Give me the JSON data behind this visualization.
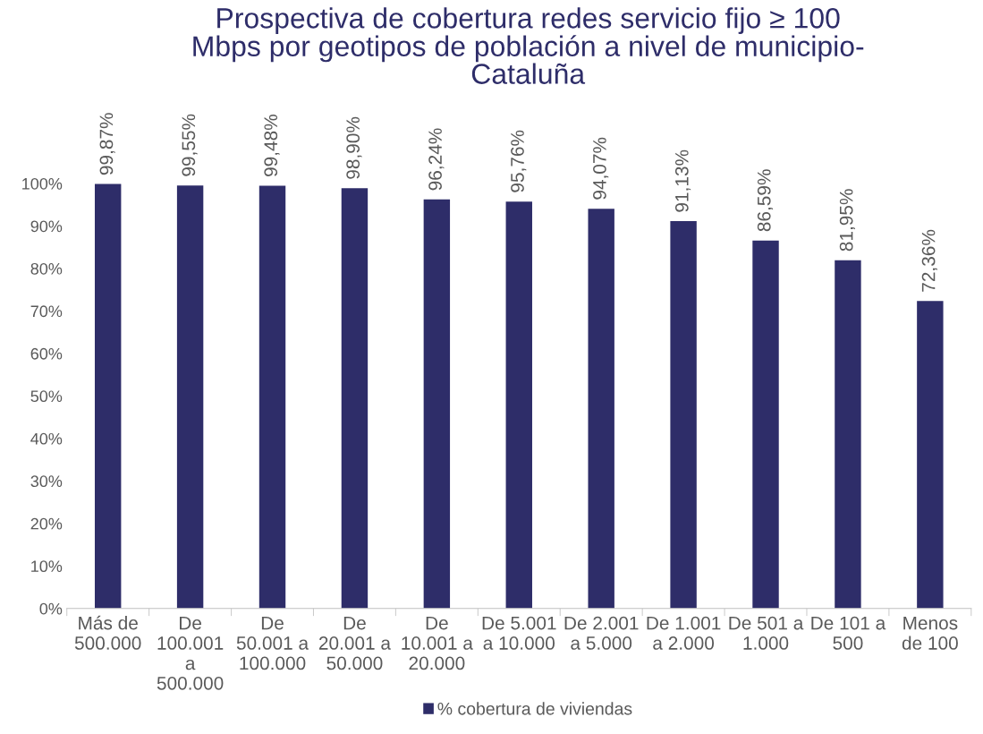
{
  "chart_data": {
    "type": "bar",
    "title": "Prospectiva de cobertura redes servicio fijo ≥ 100\nMbps por geotipos de población a nivel de municipio-\nCataluña",
    "categories": [
      "Más de\n500.000",
      "De\n100.001\na\n500.000",
      "De\n50.001 a\n100.000",
      "De\n20.001 a\n50.000",
      "De\n10.001 a\n20.000",
      "De 5.001\na 10.000",
      "De 2.001\na 5.000",
      "De 1.001\na 2.000",
      "De 501 a\n1.000",
      "De 101 a\n500",
      "Menos\nde 100"
    ],
    "series": [
      {
        "name": "% cobertura de viviendas",
        "color": "#2e2d69",
        "values": [
          99.87,
          99.55,
          99.48,
          98.9,
          96.24,
          95.76,
          94.07,
          91.13,
          86.59,
          81.95,
          72.36
        ],
        "value_labels": [
          "99,87%",
          "99,55%",
          "99,48%",
          "98,90%",
          "96,24%",
          "95,76%",
          "94,07%",
          "91,13%",
          "86,59%",
          "81,95%",
          "72,36%"
        ]
      }
    ],
    "ylim": [
      0,
      100
    ],
    "yticks": [
      {
        "value": 0,
        "label": "0%"
      },
      {
        "value": 10,
        "label": "10%"
      },
      {
        "value": 20,
        "label": "20%"
      },
      {
        "value": 30,
        "label": "30%"
      },
      {
        "value": 40,
        "label": "40%"
      },
      {
        "value": 50,
        "label": "50%"
      },
      {
        "value": 60,
        "label": "60%"
      },
      {
        "value": 70,
        "label": "70%"
      },
      {
        "value": 80,
        "label": "80%"
      },
      {
        "value": 90,
        "label": "90%"
      },
      {
        "value": 100,
        "label": "100%"
      }
    ],
    "grid": false,
    "legend": "bottom"
  }
}
